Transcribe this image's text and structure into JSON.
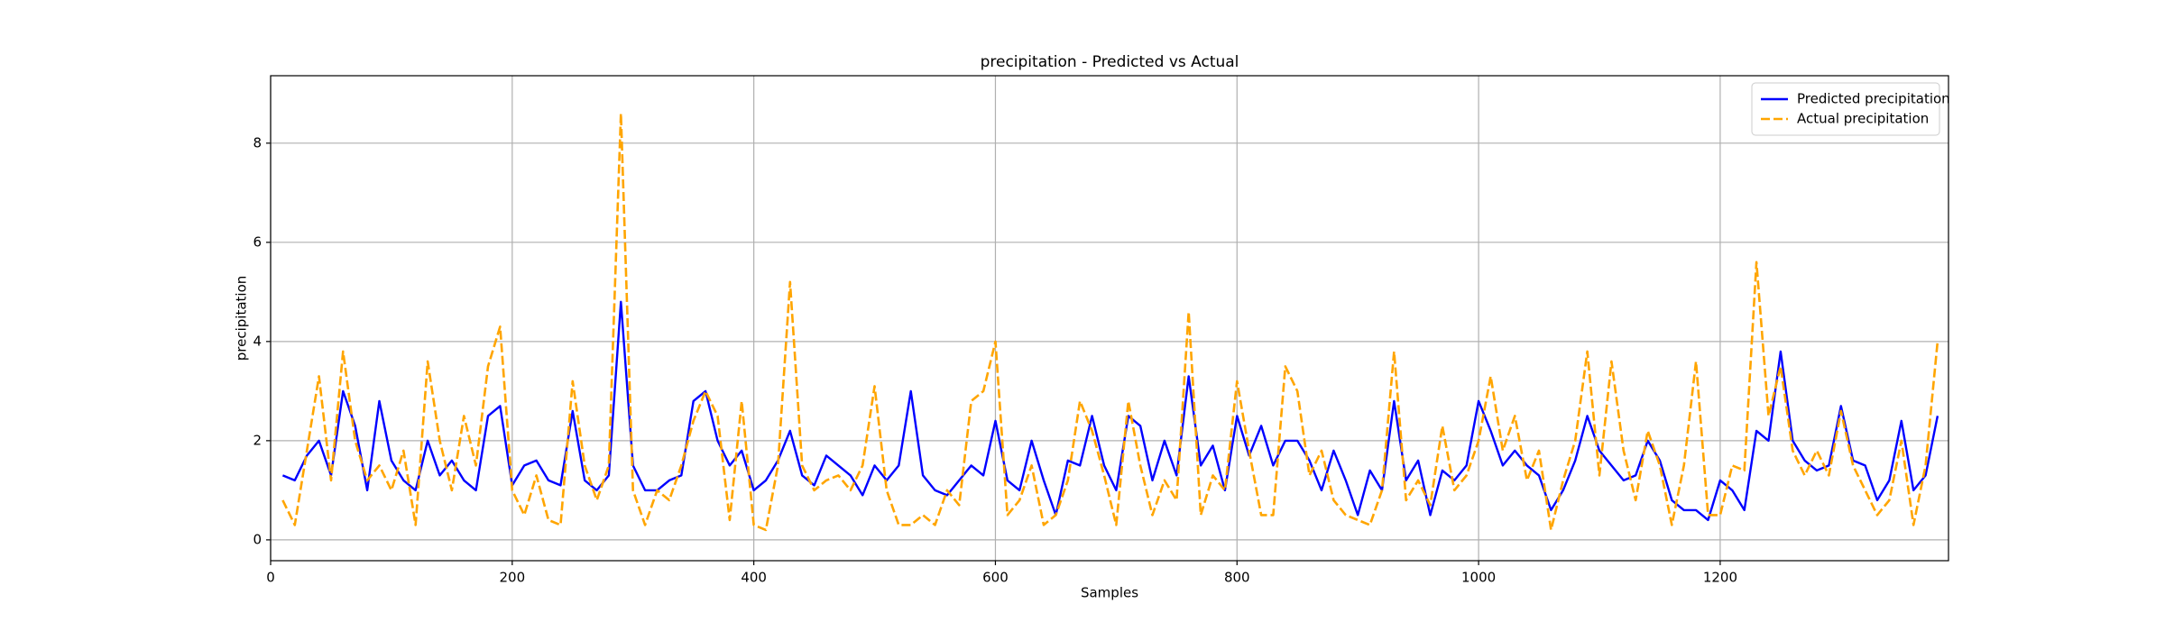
{
  "chart_data": {
    "type": "line",
    "title": "precipitation - Predicted vs Actual",
    "x_label": "Samples",
    "y_label": "precipitation",
    "x": [
      10,
      20,
      30,
      40,
      50,
      60,
      70,
      80,
      90,
      100,
      110,
      120,
      130,
      140,
      150,
      160,
      170,
      180,
      190,
      200,
      210,
      220,
      230,
      240,
      250,
      260,
      270,
      280,
      290,
      300,
      310,
      320,
      330,
      340,
      350,
      360,
      370,
      380,
      390,
      400,
      410,
      420,
      430,
      440,
      450,
      460,
      470,
      480,
      490,
      500,
      510,
      520,
      530,
      540,
      550,
      560,
      570,
      580,
      590,
      600,
      610,
      620,
      630,
      640,
      650,
      660,
      670,
      680,
      690,
      700,
      710,
      720,
      730,
      740,
      750,
      760,
      770,
      780,
      790,
      800,
      810,
      820,
      830,
      840,
      850,
      860,
      870,
      880,
      890,
      900,
      910,
      920,
      930,
      940,
      950,
      960,
      970,
      980,
      990,
      1000,
      1010,
      1020,
      1030,
      1040,
      1050,
      1060,
      1070,
      1080,
      1090,
      1100,
      1110,
      1120,
      1130,
      1140,
      1150,
      1160,
      1170,
      1180,
      1190,
      1200,
      1210,
      1220,
      1230,
      1240,
      1250,
      1260,
      1270,
      1280,
      1290,
      1300,
      1310,
      1320,
      1330,
      1340,
      1350,
      1360,
      1370,
      1380
    ],
    "series": [
      {
        "name": "Predicted precipitation",
        "color": "#0000ff",
        "dashed": false,
        "values": [
          1.3,
          1.2,
          1.7,
          2.0,
          1.3,
          3.0,
          2.3,
          1.0,
          2.8,
          1.6,
          1.2,
          1.0,
          2.0,
          1.3,
          1.6,
          1.2,
          1.0,
          2.5,
          2.7,
          1.1,
          1.5,
          1.6,
          1.2,
          1.1,
          2.6,
          1.2,
          1.0,
          1.3,
          4.8,
          1.5,
          1.0,
          1.0,
          1.2,
          1.3,
          2.8,
          3.0,
          2.0,
          1.5,
          1.8,
          1.0,
          1.2,
          1.6,
          2.2,
          1.3,
          1.1,
          1.7,
          1.5,
          1.3,
          0.9,
          1.5,
          1.2,
          1.5,
          3.0,
          1.3,
          1.0,
          0.9,
          1.2,
          1.5,
          1.3,
          2.4,
          1.2,
          1.0,
          2.0,
          1.2,
          0.5,
          1.6,
          1.5,
          2.5,
          1.5,
          1.0,
          2.5,
          2.3,
          1.2,
          2.0,
          1.3,
          3.3,
          1.5,
          1.9,
          1.0,
          2.5,
          1.7,
          2.3,
          1.5,
          2.0,
          2.0,
          1.6,
          1.0,
          1.8,
          1.2,
          0.5,
          1.4,
          1.0,
          2.8,
          1.2,
          1.6,
          0.5,
          1.4,
          1.2,
          1.5,
          2.8,
          2.2,
          1.5,
          1.8,
          1.5,
          1.3,
          0.6,
          1.0,
          1.6,
          2.5,
          1.8,
          1.5,
          1.2,
          1.3,
          2.0,
          1.6,
          0.8,
          0.6,
          0.6,
          0.4,
          1.2,
          1.0,
          0.6,
          2.2,
          2.0,
          3.8,
          2.0,
          1.6,
          1.4,
          1.5,
          2.7,
          1.6,
          1.5,
          0.8,
          1.2,
          2.4,
          1.0,
          1.3,
          2.5
        ]
      },
      {
        "name": "Actual precipitation",
        "color": "#ffa500",
        "dashed": true,
        "values": [
          0.8,
          0.3,
          1.8,
          3.3,
          1.2,
          3.8,
          2.0,
          1.2,
          1.5,
          1.0,
          1.8,
          0.3,
          3.6,
          2.0,
          1.0,
          2.5,
          1.5,
          3.5,
          4.3,
          1.0,
          0.5,
          1.3,
          0.4,
          0.3,
          3.2,
          1.5,
          0.8,
          1.5,
          8.6,
          1.0,
          0.3,
          1.0,
          0.8,
          1.5,
          2.4,
          3.0,
          2.5,
          0.4,
          2.8,
          0.3,
          0.2,
          1.5,
          5.2,
          1.5,
          1.0,
          1.2,
          1.3,
          1.0,
          1.5,
          3.1,
          1.0,
          0.3,
          0.3,
          0.5,
          0.3,
          1.0,
          0.7,
          2.8,
          3.0,
          4.0,
          0.5,
          0.8,
          1.5,
          0.3,
          0.5,
          1.2,
          2.8,
          2.2,
          1.3,
          0.3,
          2.8,
          1.5,
          0.5,
          1.2,
          0.8,
          4.6,
          0.5,
          1.3,
          1.0,
          3.2,
          1.8,
          0.5,
          0.5,
          3.5,
          3.0,
          1.3,
          1.8,
          0.8,
          0.5,
          0.4,
          0.3,
          1.0,
          3.8,
          0.8,
          1.2,
          0.7,
          2.3,
          1.0,
          1.3,
          2.0,
          3.3,
          1.8,
          2.5,
          1.2,
          1.8,
          0.2,
          1.2,
          2.0,
          3.8,
          1.3,
          3.6,
          1.8,
          0.8,
          2.2,
          1.5,
          0.3,
          1.5,
          3.6,
          0.5,
          0.5,
          1.5,
          1.4,
          5.6,
          2.5,
          3.5,
          1.8,
          1.3,
          1.8,
          1.3,
          2.6,
          1.5,
          1.0,
          0.5,
          0.8,
          2.0,
          0.3,
          1.5,
          4.0
        ]
      }
    ],
    "xlim": [
      0,
      1389
    ],
    "ylim": [
      -0.42,
      9.36
    ],
    "xticks": [
      0,
      200,
      400,
      600,
      800,
      1000,
      1200
    ],
    "yticks": [
      0,
      2,
      4,
      6,
      8
    ],
    "grid": true,
    "legend": "upper right"
  }
}
